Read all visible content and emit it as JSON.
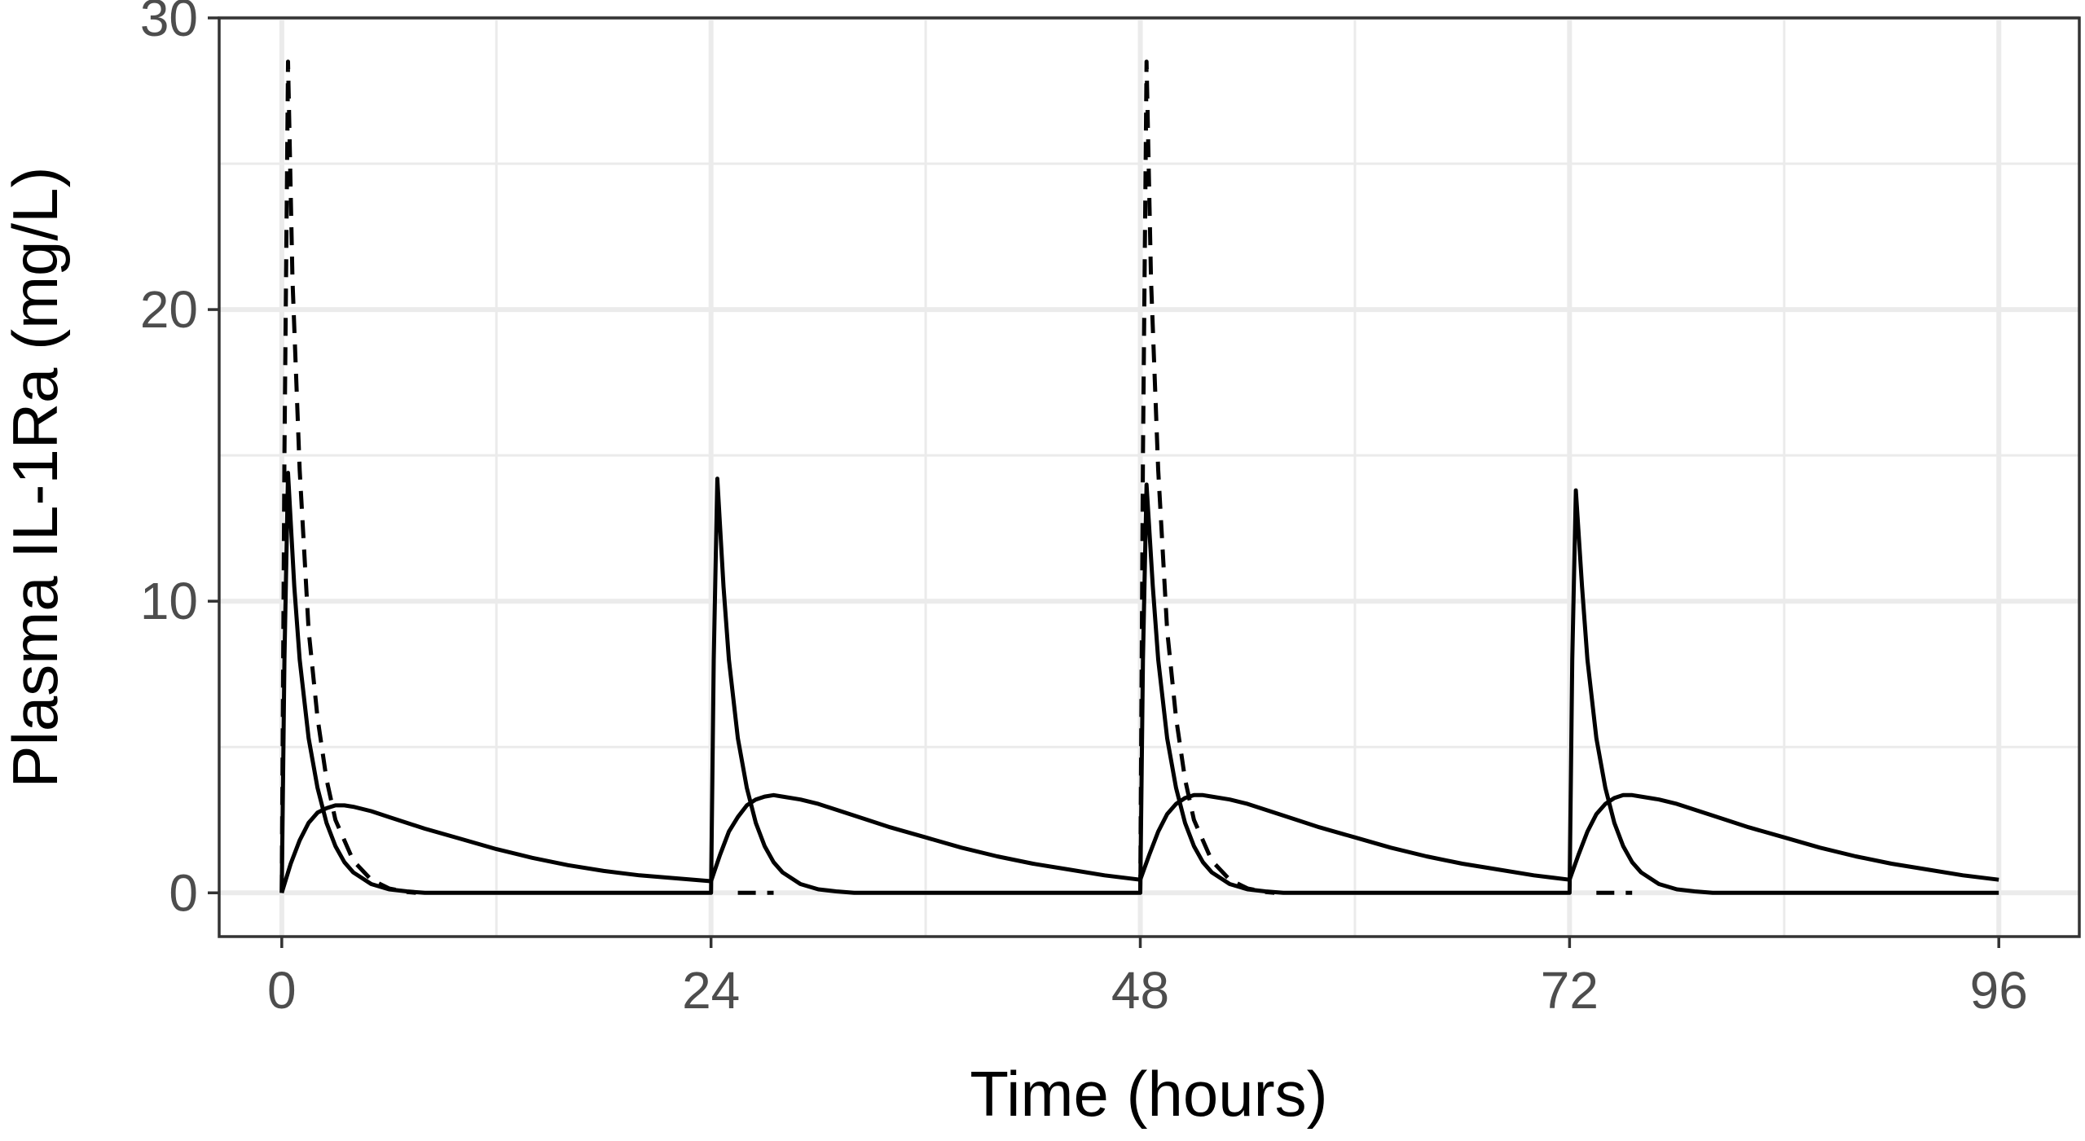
{
  "chart_data": {
    "type": "line",
    "title": "",
    "xlabel": "Time (hours)",
    "ylabel": "Plasma IL-1Ra (mg/L)",
    "xlim": [
      -3.5,
      100.5
    ],
    "ylim": [
      -1.5,
      30.0
    ],
    "x_ticks": [
      0,
      24,
      48,
      72,
      96
    ],
    "x_tick_labels": [
      "0",
      "24",
      "48",
      "72",
      "96"
    ],
    "x_minor_ticks": [
      12,
      36,
      60,
      84
    ],
    "y_ticks": [
      0,
      10,
      20,
      30
    ],
    "y_tick_labels": [
      "0",
      "10",
      "20",
      "30"
    ],
    "y_minor_ticks": [
      5,
      15,
      25
    ],
    "grid": true,
    "legend": "none",
    "colors": {
      "line": "#000000",
      "grid": "#ebebeb",
      "panel_border": "#333333",
      "tick_label": "#4d4d4d"
    },
    "series": [
      {
        "style": "dashed",
        "points": [
          [
            0,
            0
          ],
          [
            0.15,
            15
          ],
          [
            0.35,
            28.5
          ],
          [
            0.6,
            21
          ],
          [
            1,
            14.5
          ],
          [
            1.5,
            9
          ],
          [
            2,
            6
          ],
          [
            2.5,
            3.9
          ],
          [
            3,
            2.5
          ],
          [
            4,
            1.1
          ],
          [
            5,
            0.45
          ],
          [
            6,
            0.15
          ],
          [
            7,
            0.03
          ],
          [
            7.5,
            0
          ]
        ],
        "segments": [
          [
            0,
            7.5
          ],
          [
            25.5,
            27.5
          ],
          [
            48,
            55.5
          ],
          [
            73.5,
            75.5
          ]
        ]
      },
      {
        "style": "solid",
        "points": [
          [
            0,
            0
          ],
          [
            0.15,
            8
          ],
          [
            0.35,
            14.4
          ],
          [
            0.7,
            10.5
          ],
          [
            1,
            8
          ],
          [
            1.5,
            5.3
          ],
          [
            2,
            3.6
          ],
          [
            2.5,
            2.4
          ],
          [
            3,
            1.6
          ],
          [
            3.5,
            1.05
          ],
          [
            4,
            0.7
          ],
          [
            5,
            0.3
          ],
          [
            6,
            0.12
          ],
          [
            7,
            0.05
          ],
          [
            8,
            0
          ],
          [
            24,
            0
          ],
          [
            24.15,
            8
          ],
          [
            24.35,
            14.2
          ],
          [
            24.7,
            10.5
          ],
          [
            25,
            8
          ],
          [
            25.5,
            5.3
          ],
          [
            26,
            3.6
          ],
          [
            26.5,
            2.4
          ],
          [
            27,
            1.6
          ],
          [
            27.5,
            1.05
          ],
          [
            28,
            0.7
          ],
          [
            29,
            0.3
          ],
          [
            30,
            0.12
          ],
          [
            31,
            0.05
          ],
          [
            32,
            0
          ],
          [
            48,
            0
          ],
          [
            48.15,
            8
          ],
          [
            48.35,
            14.0
          ],
          [
            48.7,
            10.5
          ],
          [
            49,
            8
          ],
          [
            49.5,
            5.3
          ],
          [
            50,
            3.6
          ],
          [
            50.5,
            2.4
          ],
          [
            51,
            1.6
          ],
          [
            51.5,
            1.05
          ],
          [
            52,
            0.7
          ],
          [
            53,
            0.3
          ],
          [
            54,
            0.12
          ],
          [
            55,
            0.05
          ],
          [
            56,
            0
          ],
          [
            72,
            0
          ],
          [
            72.15,
            8
          ],
          [
            72.35,
            13.8
          ],
          [
            72.7,
            10.5
          ],
          [
            73,
            8
          ],
          [
            73.5,
            5.3
          ],
          [
            74,
            3.6
          ],
          [
            74.5,
            2.4
          ],
          [
            75,
            1.6
          ],
          [
            75.5,
            1.05
          ],
          [
            76,
            0.7
          ],
          [
            77,
            0.3
          ],
          [
            78,
            0.12
          ],
          [
            79,
            0.05
          ],
          [
            80,
            0
          ],
          [
            96,
            0
          ]
        ]
      },
      {
        "style": "solid",
        "points": [
          [
            0,
            0
          ],
          [
            0.5,
            1.0
          ],
          [
            1,
            1.8
          ],
          [
            1.5,
            2.4
          ],
          [
            2,
            2.75
          ],
          [
            2.5,
            2.9
          ],
          [
            3,
            3.0
          ],
          [
            3.5,
            3.0
          ],
          [
            4,
            2.95
          ],
          [
            5,
            2.8
          ],
          [
            6,
            2.6
          ],
          [
            8,
            2.2
          ],
          [
            10,
            1.85
          ],
          [
            12,
            1.5
          ],
          [
            14,
            1.2
          ],
          [
            16,
            0.95
          ],
          [
            18,
            0.75
          ],
          [
            20,
            0.6
          ],
          [
            22,
            0.5
          ],
          [
            24,
            0.4
          ],
          [
            24.5,
            1.3
          ],
          [
            25,
            2.1
          ],
          [
            25.5,
            2.6
          ],
          [
            26,
            3.0
          ],
          [
            26.5,
            3.2
          ],
          [
            27,
            3.3
          ],
          [
            27.5,
            3.35
          ],
          [
            28,
            3.3
          ],
          [
            29,
            3.2
          ],
          [
            30,
            3.05
          ],
          [
            32,
            2.65
          ],
          [
            34,
            2.25
          ],
          [
            36,
            1.9
          ],
          [
            38,
            1.55
          ],
          [
            40,
            1.25
          ],
          [
            42,
            1.0
          ],
          [
            44,
            0.8
          ],
          [
            46,
            0.6
          ],
          [
            48,
            0.45
          ],
          [
            48.5,
            1.3
          ],
          [
            49,
            2.1
          ],
          [
            49.5,
            2.7
          ],
          [
            50,
            3.05
          ],
          [
            50.5,
            3.25
          ],
          [
            51,
            3.35
          ],
          [
            51.5,
            3.35
          ],
          [
            52,
            3.3
          ],
          [
            53,
            3.2
          ],
          [
            54,
            3.05
          ],
          [
            56,
            2.65
          ],
          [
            58,
            2.25
          ],
          [
            60,
            1.9
          ],
          [
            62,
            1.55
          ],
          [
            64,
            1.25
          ],
          [
            66,
            1.0
          ],
          [
            68,
            0.8
          ],
          [
            70,
            0.6
          ],
          [
            72,
            0.45
          ],
          [
            72.5,
            1.3
          ],
          [
            73,
            2.1
          ],
          [
            73.5,
            2.7
          ],
          [
            74,
            3.05
          ],
          [
            74.5,
            3.25
          ],
          [
            75,
            3.35
          ],
          [
            75.5,
            3.35
          ],
          [
            76,
            3.3
          ],
          [
            77,
            3.2
          ],
          [
            78,
            3.05
          ],
          [
            80,
            2.65
          ],
          [
            82,
            2.25
          ],
          [
            84,
            1.9
          ],
          [
            86,
            1.55
          ],
          [
            88,
            1.25
          ],
          [
            90,
            1.0
          ],
          [
            92,
            0.8
          ],
          [
            94,
            0.6
          ],
          [
            96,
            0.45
          ]
        ]
      }
    ]
  }
}
